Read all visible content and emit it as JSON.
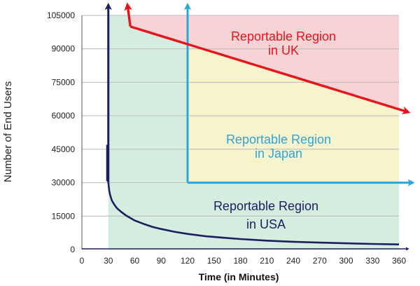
{
  "chart_data": {
    "type": "area",
    "xlabel": "Time (in Minutes)",
    "ylabel": "Number of End Users",
    "xlim": [
      0,
      360
    ],
    "ylim": [
      0,
      105000
    ],
    "x_ticks": [
      "0",
      "30",
      "60",
      "90",
      "120",
      "150",
      "180",
      "210",
      "240",
      "270",
      "300",
      "330",
      "360"
    ],
    "y_ticks": [
      "0",
      "15000",
      "30000",
      "45000",
      "60000",
      "75000",
      "90000",
      "105000"
    ],
    "grid": "horizontal",
    "regions": [
      {
        "name": "Reportable Region in UK",
        "label_line1": "Reportable Region",
        "label_line2": "in UK",
        "color": "#e8141c",
        "fill": "#f8d3d6",
        "x": [
          55,
          360
        ],
        "y": [
          100000,
          63000
        ]
      },
      {
        "name": "Reportable Region in Japan",
        "label_line1": "Reportable Region",
        "label_line2": "in Japan",
        "color": "#2aa6dc",
        "fill": "#f7f3cc",
        "corner": [
          120,
          30000
        ],
        "x_end": 370,
        "y_top": 108000
      },
      {
        "name": "Reportable Region in USA",
        "label_line1": "Reportable Region",
        "label_line2": "in USA",
        "color": "#1c1e62",
        "fill": "#d5eddf",
        "vertical_at": 30,
        "curve": {
          "x": [
            30,
            31,
            32,
            34,
            37,
            40,
            45,
            50,
            60,
            70,
            80,
            90,
            105,
            120,
            140,
            160,
            180,
            210,
            240,
            270,
            300,
            330,
            360
          ],
          "y": [
            30000,
            26500,
            24500,
            22000,
            20000,
            18500,
            16800,
            15300,
            13000,
            11500,
            10200,
            9200,
            8000,
            7000,
            6000,
            5300,
            4700,
            4000,
            3500,
            3100,
            2800,
            2500,
            2300
          ]
        }
      }
    ]
  }
}
